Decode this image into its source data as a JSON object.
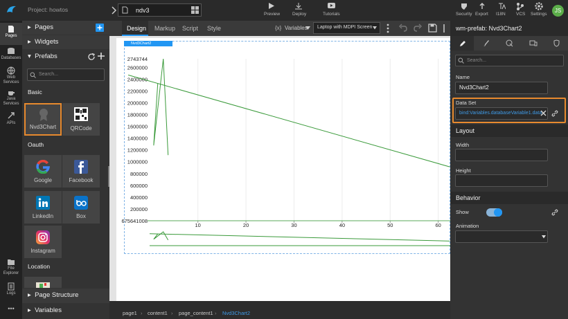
{
  "topbar": {
    "project": "Project: howtos",
    "file_tab": "ndv3",
    "actions": [
      "Preview",
      "Deploy",
      "Tutorials"
    ],
    "tools": [
      "Security",
      "Export",
      "I18N",
      "VCS",
      "Settings"
    ],
    "avatar": "JS"
  },
  "rail": {
    "top": [
      "Pages",
      "Databases",
      "Web Services",
      "Java Services",
      "APIs"
    ],
    "bottom": [
      "File Explorer",
      "Logs"
    ],
    "more": "•••"
  },
  "left_panel": {
    "sections": [
      "Pages",
      "Widgets"
    ],
    "prefabs": {
      "title": "Prefabs",
      "search": "Search...",
      "groups": [
        {
          "name": "Basic",
          "items": [
            "Nvd3Chart",
            "QRCode"
          ]
        },
        {
          "name": "Oauth",
          "items": [
            "Google",
            "Facebook",
            "LinkedIn",
            "Box",
            "Instagram"
          ]
        },
        {
          "name": "Location"
        }
      ]
    },
    "footer": [
      "Page Structure",
      "Variables"
    ]
  },
  "editor": {
    "tabs": [
      "Design",
      "Markup",
      "Script",
      "Style"
    ],
    "variables_icon": "{x}",
    "variables": "Variables",
    "device": "Laptop with MDPI Screen",
    "widget": "Nvd3Chart2",
    "breadcrumb": [
      "page1",
      "content1",
      "page_content1",
      "Nvd3Chart2"
    ]
  },
  "chart_data": {
    "type": "line",
    "series": [
      {
        "color": "#3a9a3a",
        "x": [
          -4.5,
          62.4
        ],
        "values": [
          2470000,
          913000
        ]
      },
      {
        "color": "#3a9a3a",
        "x": [
          1.65,
          0.8,
          2.8,
          3.8
        ],
        "values": [
          2330000,
          1276000,
          2743744,
          1112000
        ]
      }
    ],
    "xlim": [
      -4.8,
      62.5
    ],
    "xticks": [
      10,
      20,
      30,
      40,
      50,
      60
    ],
    "ylim": [
      0,
      2743744
    ],
    "yticks": [
      200000,
      400000,
      600000,
      800000,
      1000000,
      1200000,
      1400000,
      1600000,
      1800000,
      2000000,
      2200000,
      2400000,
      2600000,
      2743744
    ],
    "corner_label": "675641008",
    "grid": true
  },
  "properties": {
    "title": "wm-prefab: Nvd3Chart2",
    "search": "Search...",
    "name_label": "Name",
    "name_value": "Nvd3Chart2",
    "dataset_label": "Data Set",
    "dataset_value": "bind:Variables.databaseVariable1.data",
    "layout": {
      "title": "Layout",
      "fields": [
        "Width",
        "Height"
      ]
    },
    "behavior": {
      "title": "Behavior",
      "show": "Show",
      "animation": "Animation"
    }
  }
}
